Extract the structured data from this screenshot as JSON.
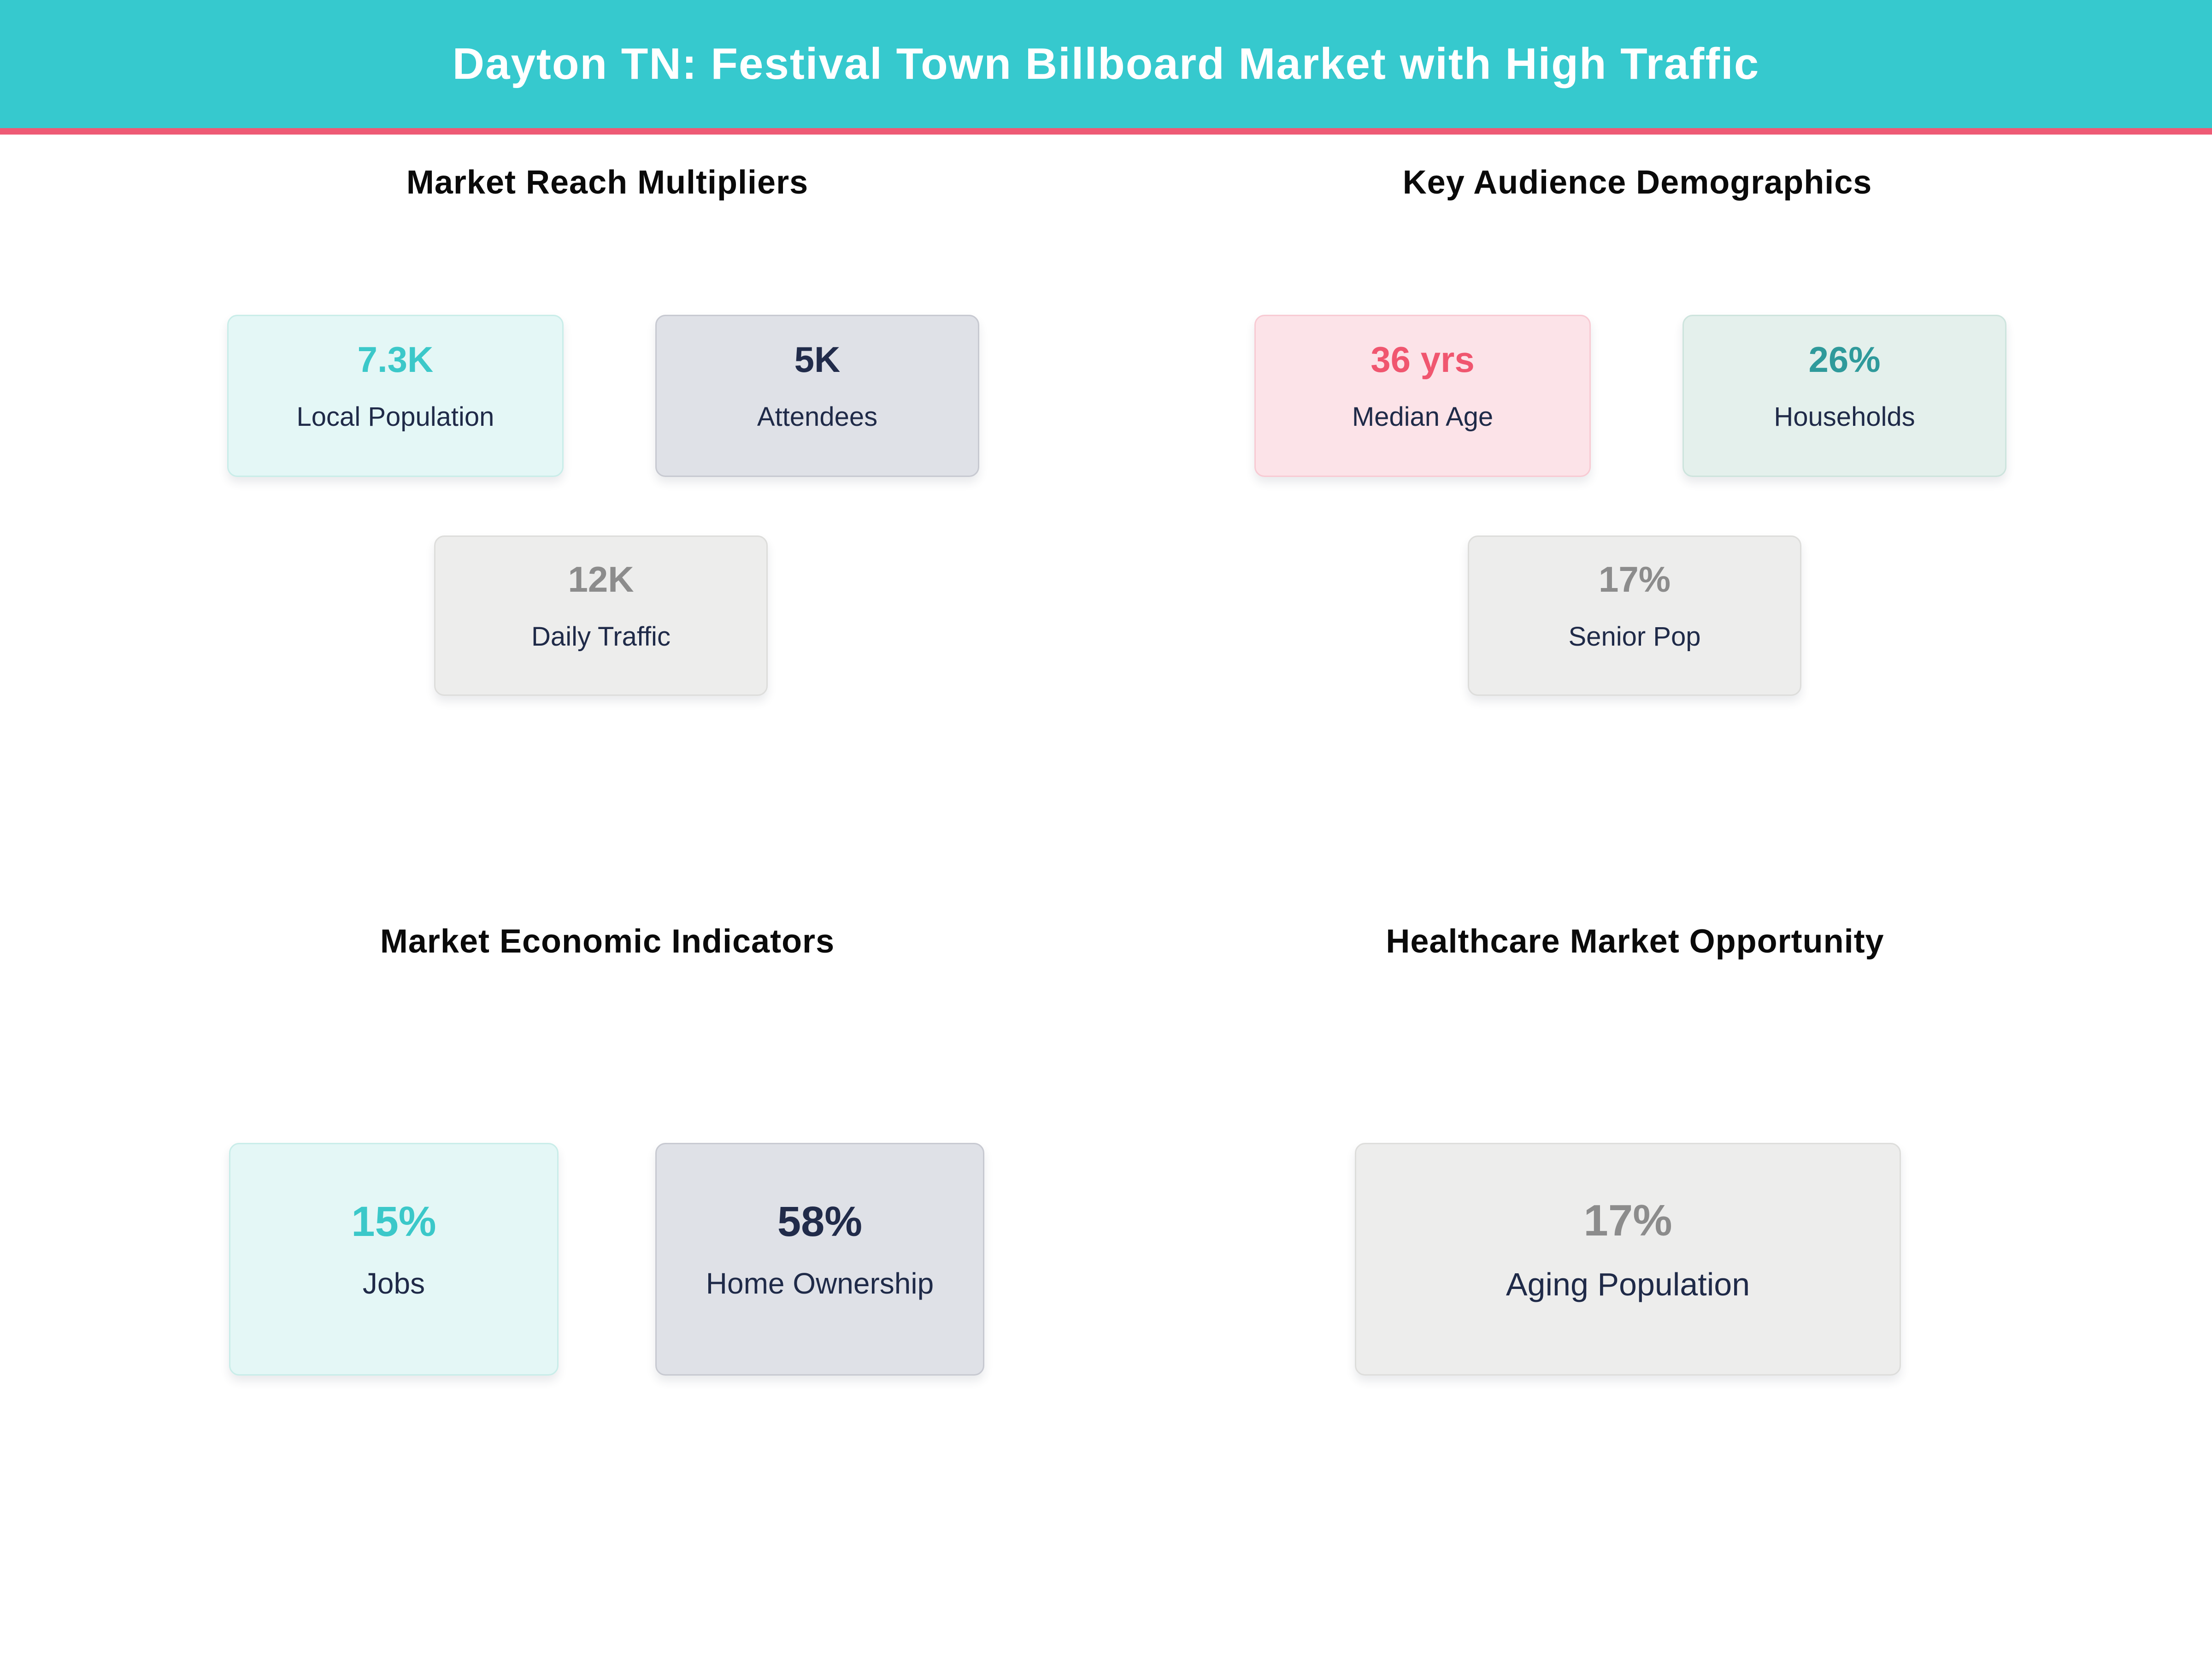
{
  "header": {
    "title": "Dayton TN: Festival Town Billboard Market with High Traffic"
  },
  "sections": [
    {
      "title": "Market Reach Multipliers"
    },
    {
      "title": "Key Audience Demographics"
    },
    {
      "title": "Market Economic Indicators"
    },
    {
      "title": "Healthcare Market Opportunity"
    }
  ],
  "cards": [
    {
      "value": "7.3K",
      "label": "Local Population"
    },
    {
      "value": "5K",
      "label": "Attendees"
    },
    {
      "value": "12K",
      "label": "Daily Traffic"
    },
    {
      "value": "36 yrs",
      "label": "Median Age"
    },
    {
      "value": "26%",
      "label": "Households"
    },
    {
      "value": "17%",
      "label": "Senior Pop"
    },
    {
      "value": "15%",
      "label": "Jobs"
    },
    {
      "value": "58%",
      "label": "Home Ownership"
    },
    {
      "value": "17%",
      "label": "Aging Population"
    }
  ],
  "colors": {
    "header_bg": "#36C9CE",
    "header_accent_line": "#EE5A75",
    "title_text": "#FFFFFF",
    "heading_text": "#0A0A0A",
    "label_navy": "#1F2A48",
    "value_teal_bright": "#3BC8C9",
    "value_teal_dark": "#2F9A9B",
    "value_pink": "#F0566F",
    "value_navy": "#212B4A",
    "value_gray": "#8C8C8C",
    "card_mint_bg": "#E4F7F6",
    "card_pink_bg": "#FCE3E8",
    "card_graylav_bg": "#DFE1E7",
    "card_mint2_bg": "#E4F0EC",
    "card_lightgray_bg": "#EDEDEC"
  },
  "chart_data": {
    "type": "table",
    "title": "Dayton TN: Festival Town Billboard Market with High Traffic",
    "sections": [
      {
        "title": "Market Reach Multipliers",
        "metrics": [
          {
            "label": "Local Population",
            "value": "7.3K",
            "numeric": 7300
          },
          {
            "label": "Attendees",
            "value": "5K",
            "numeric": 5000
          },
          {
            "label": "Daily Traffic",
            "value": "12K",
            "numeric": 12000
          }
        ]
      },
      {
        "title": "Key Audience Demographics",
        "metrics": [
          {
            "label": "Median Age",
            "value": "36 yrs",
            "numeric": 36
          },
          {
            "label": "Households",
            "value": "26%",
            "numeric": 26
          },
          {
            "label": "Senior Pop",
            "value": "17%",
            "numeric": 17
          }
        ]
      },
      {
        "title": "Market Economic Indicators",
        "metrics": [
          {
            "label": "Jobs",
            "value": "15%",
            "numeric": 15
          },
          {
            "label": "Home Ownership",
            "value": "58%",
            "numeric": 58
          }
        ]
      },
      {
        "title": "Healthcare Market Opportunity",
        "metrics": [
          {
            "label": "Aging Population",
            "value": "17%",
            "numeric": 17
          }
        ]
      }
    ]
  }
}
